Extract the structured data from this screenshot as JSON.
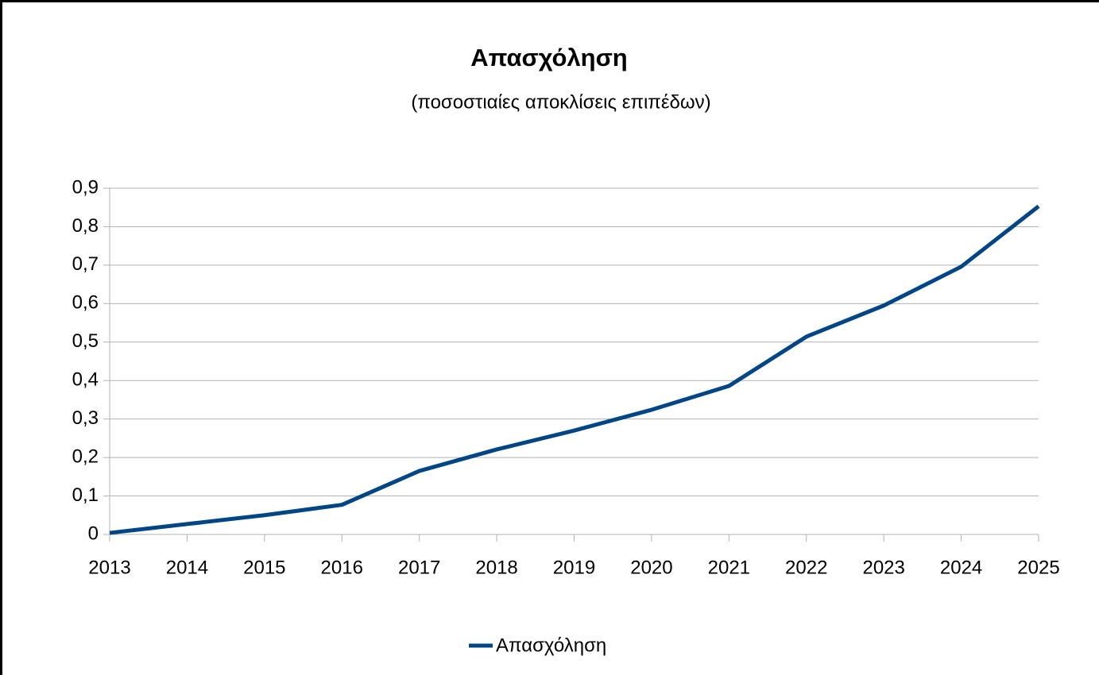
{
  "chart_data": {
    "type": "line",
    "title": "Απασχόληση",
    "subtitle": "(ποσοστιαίες αποκλίσεις επιπέδων)",
    "categories": [
      "2013",
      "2014",
      "2015",
      "2016",
      "2017",
      "2018",
      "2019",
      "2020",
      "2021",
      "2022",
      "2023",
      "2024",
      "2025"
    ],
    "series": [
      {
        "name": "Απασχόληση",
        "color": "#004586",
        "values": [
          0.004,
          0.027,
          0.05,
          0.077,
          0.165,
          0.221,
          0.27,
          0.324,
          0.386,
          0.514,
          0.595,
          0.696,
          0.853
        ]
      }
    ],
    "ylim": [
      0,
      0.9
    ],
    "yticks": [
      0,
      {
        "value": 0.1,
        "label": "0,1"
      },
      {
        "value": 0.2,
        "label": "0,2"
      },
      {
        "value": 0.3,
        "label": "0,3"
      },
      {
        "value": 0.4,
        "label": "0,4"
      },
      {
        "value": 0.5,
        "label": "0,5"
      },
      {
        "value": 0.6,
        "label": "0,6"
      },
      {
        "value": 0.7,
        "label": "0,7"
      },
      {
        "value": 0.8,
        "label": "0,8"
      },
      {
        "value": 0.9,
        "label": "0,9"
      }
    ],
    "grid": true,
    "legend": "bottom"
  }
}
